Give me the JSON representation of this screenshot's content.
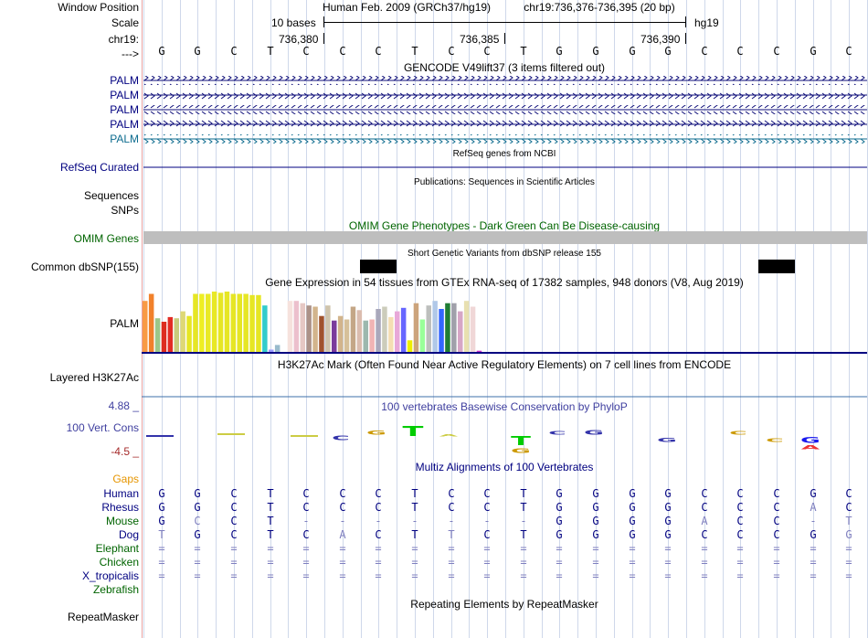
{
  "labels": {
    "window_position": "Window Position",
    "scale": "Scale",
    "chrom": "chr19:",
    "arrow": "--->",
    "palm_rows": [
      "PALM",
      "PALM",
      "PALM",
      "PALM",
      "PALM"
    ],
    "refseq": "RefSeq Curated",
    "sequences": "Sequences",
    "snps": "SNPs",
    "omim": "OMIM Genes",
    "dbsnp": "Common dbSNP(155)",
    "gtex_gene": "PALM",
    "h3k27ac": "Layered H3K27Ac",
    "cons_max": "4.88 _",
    "cons_label": "100 Vert. Cons",
    "cons_min": "-4.5 _",
    "gaps": "Gaps",
    "repeatmasker": "RepeatMasker"
  },
  "header": {
    "assembly": "Human Feb. 2009 (GRCh37/hg19)",
    "position": "chr19:736,376-736,395 (20 bp)",
    "scale_text": "10 bases",
    "db": "hg19",
    "coords": [
      "736,380",
      "736,385",
      "736,390"
    ]
  },
  "sequence": [
    "G",
    "G",
    "C",
    "T",
    "C",
    "C",
    "C",
    "T",
    "C",
    "C",
    "T",
    "G",
    "G",
    "G",
    "G",
    "C",
    "C",
    "C",
    "G",
    "C"
  ],
  "track_titles": {
    "gencode": "GENCODE V49lift37 (3 items filtered out)",
    "refseq": "RefSeq genes from NCBI",
    "pubs": "Publications: Sequences in Scientific Articles",
    "omim": "OMIM Gene Phenotypes - Dark Green Can Be Disease-causing",
    "dbsnp": "Short Genetic Variants from dbSNP release 155",
    "gtex": "Gene Expression in 54 tissues from GTEx RNA-seq of 17382 samples, 948 donors (V8, Aug 2019)",
    "h3k27ac": "H3K27Ac Mark (Often Found Near Active Regulatory Elements) on 7 cell lines from ENCODE",
    "phylop": "100 vertebrates Basewise Conservation by PhyloP",
    "multiz": "Multiz Alignments of 100 Vertebrates",
    "rmsk": "Repeating Elements by RepeatMasker"
  },
  "gtex_values": [
    88,
    100,
    58,
    52,
    60,
    58,
    70,
    62,
    100,
    100,
    100,
    104,
    102,
    104,
    100,
    100,
    100,
    98,
    98,
    80,
    4,
    12,
    0,
    88,
    88,
    84,
    80,
    78,
    62,
    80,
    54,
    62,
    56,
    78,
    72,
    54,
    56,
    74,
    78,
    60,
    70,
    76,
    20,
    84,
    56,
    80,
    88,
    74,
    84,
    84,
    70,
    88,
    78,
    2
  ],
  "gtex_colors": [
    "#f89a45",
    "#f1812b",
    "#9cc789",
    "#dd2d1f",
    "#e22c24",
    "#c9cc7c",
    "#ded876",
    "#e6e624",
    "#e6e624",
    "#eeee22",
    "#e9e925",
    "#e8e826",
    "#e6e624",
    "#e6e624",
    "#e6e624",
    "#e6e624",
    "#e6e624",
    "#e6e624",
    "#e6e624",
    "#33cccc",
    "#9999ff",
    "#99bbcc",
    "#aacc22",
    "#f6e2dd",
    "#ecc0cd",
    "#e6c8c4",
    "#ac9288",
    "#d2b48c",
    "#a0522d",
    "#cfc4ac",
    "#7a3b9c",
    "#d2b48c",
    "#d6c09a",
    "#c4a686",
    "#dbbcae",
    "#9cb8ae",
    "#f0b4b4",
    "#a9a8bb",
    "#ccccbb",
    "#f5deb3",
    "#e8a8d8",
    "#6666ff",
    "#eeee00",
    "#cca47c",
    "#99ff99",
    "#bdbfbd",
    "#b0c8e8",
    "#3366ff",
    "#1f7d34",
    "#a0a0aa",
    "#d6a6c6",
    "#e8e0b0",
    "#f0d7d7",
    "#cc33cc"
  ],
  "multiz": {
    "gaps_label": "Gaps",
    "species": [
      {
        "name": "Human",
        "bases": [
          "G",
          "G",
          "C",
          "T",
          "C",
          "C",
          "C",
          "T",
          "C",
          "C",
          "T",
          "G",
          "G",
          "G",
          "G",
          "C",
          "C",
          "C",
          "G",
          "C"
        ]
      },
      {
        "name": "Rhesus",
        "bases": [
          "G",
          "G",
          "C",
          "T",
          "C",
          "C",
          "C",
          "T",
          "C",
          "C",
          "T",
          "G",
          "G",
          "G",
          "G",
          "C",
          "C",
          "C",
          "A",
          "C"
        ]
      },
      {
        "name": "Mouse",
        "bases": [
          "G",
          "C",
          "C",
          "T",
          "-",
          "-",
          "-",
          "-",
          "-",
          "-",
          "-",
          "G",
          "G",
          "G",
          "G",
          "A",
          "C",
          "C",
          "-",
          "T"
        ]
      },
      {
        "name": "Dog",
        "bases": [
          "T",
          "G",
          "C",
          "T",
          "C",
          "A",
          "C",
          "T",
          "T",
          "C",
          "T",
          "G",
          "G",
          "G",
          "G",
          "C",
          "C",
          "C",
          "G",
          "G"
        ]
      },
      {
        "name": "Elephant",
        "bases": [
          "=",
          "=",
          "=",
          "=",
          "=",
          "=",
          "=",
          "=",
          "=",
          "=",
          "=",
          "=",
          "=",
          "=",
          "=",
          "=",
          "=",
          "=",
          "=",
          "="
        ]
      },
      {
        "name": "Chicken",
        "bases": [
          "=",
          "=",
          "=",
          "=",
          "=",
          "=",
          "=",
          "=",
          "=",
          "=",
          "=",
          "=",
          "=",
          "=",
          "=",
          "=",
          "=",
          "=",
          "=",
          "="
        ]
      },
      {
        "name": "X_tropicalis",
        "bases": [
          "=",
          "=",
          "=",
          "=",
          "=",
          "=",
          "=",
          "=",
          "=",
          "=",
          "=",
          "=",
          "=",
          "=",
          "=",
          "=",
          "=",
          "=",
          "=",
          "="
        ]
      },
      {
        "name": "Zebrafish",
        "bases": [
          "",
          "",
          "",
          "",
          "",
          "",
          "",
          "",
          "",
          "",
          "",
          "",
          "",
          "",
          "",
          "",
          "",
          "",
          "",
          ""
        ]
      }
    ]
  },
  "colors": {
    "navy": "#000080",
    "omim_green": "#006400",
    "gencode_blue": "#0c0c78",
    "teal": "#0c6b8e",
    "phylop_blue": "#3f3f9f",
    "cons_red": "#a52a2a",
    "gaps_orange": "#e69500",
    "green_label": "#006400"
  }
}
